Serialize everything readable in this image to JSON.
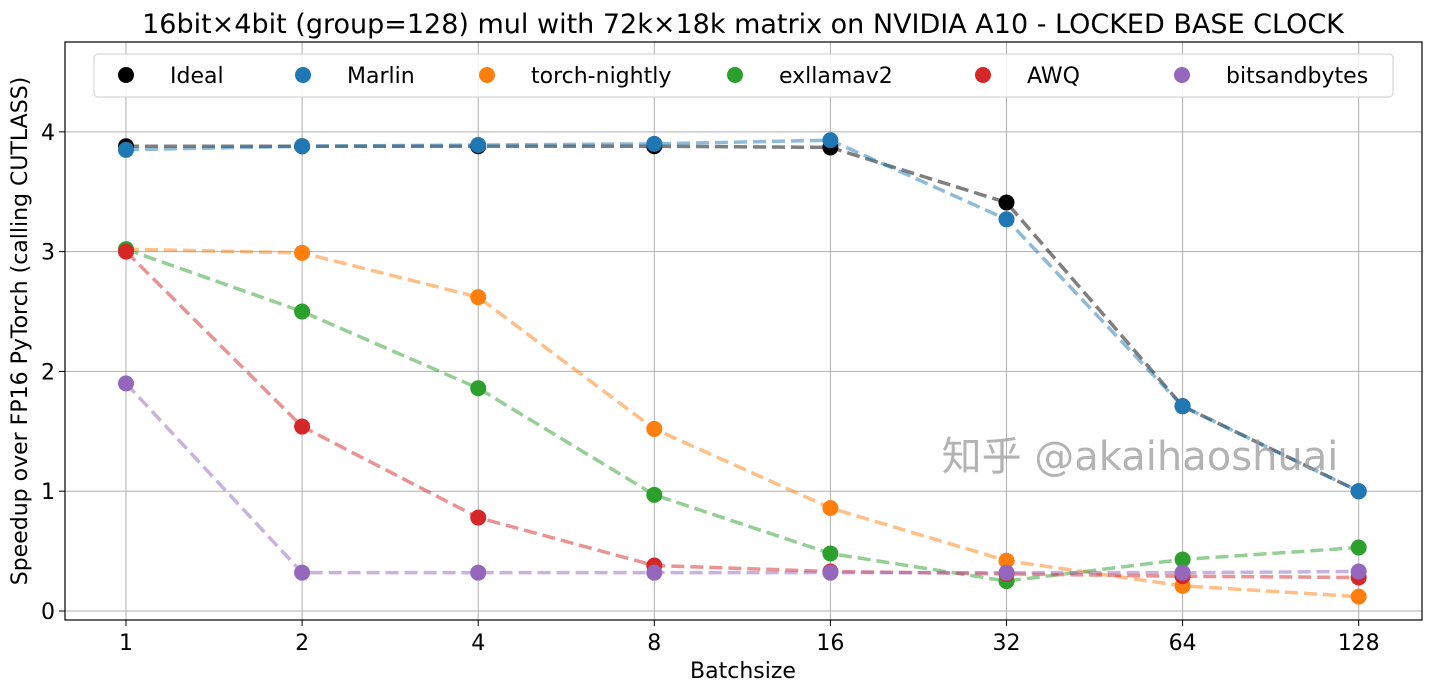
{
  "chart_data": {
    "type": "line",
    "title": "16bit×4bit (group=128) mul with 72k×18k matrix on NVIDIA A10 - LOCKED BASE CLOCK",
    "xlabel": "Batchsize",
    "ylabel": "Speedup over FP16 PyTorch (calling CUTLASS)",
    "categories": [
      "1",
      "2",
      "4",
      "8",
      "16",
      "32",
      "64",
      "128"
    ],
    "ylim": [
      -0.075,
      4.75
    ],
    "yticks": [
      0,
      1,
      2,
      3,
      4
    ],
    "grid": true,
    "legend_placement": "top",
    "line_style": "dashed",
    "series": [
      {
        "name": "Ideal",
        "color": "#000000",
        "values": [
          3.88,
          3.88,
          3.88,
          3.88,
          3.87,
          3.41,
          1.71,
          1.0
        ]
      },
      {
        "name": "Marlin",
        "color": "#1f77b4",
        "values": [
          3.85,
          3.88,
          3.89,
          3.9,
          3.93,
          3.27,
          1.71,
          1.0
        ]
      },
      {
        "name": "torch-nightly",
        "color": "#ff7f0e",
        "values": [
          3.02,
          2.99,
          2.62,
          1.52,
          0.86,
          0.42,
          0.21,
          0.12
        ]
      },
      {
        "name": "exllamav2",
        "color": "#2ca02c",
        "values": [
          3.02,
          2.5,
          1.86,
          0.97,
          0.48,
          0.25,
          0.43,
          0.53
        ]
      },
      {
        "name": "AWQ",
        "color": "#d62728",
        "values": [
          3.0,
          1.54,
          0.78,
          0.38,
          0.33,
          0.31,
          0.29,
          0.28
        ]
      },
      {
        "name": "bitsandbytes",
        "color": "#9467bd",
        "values": [
          1.9,
          0.32,
          0.32,
          0.32,
          0.32,
          0.32,
          0.32,
          0.33
        ]
      }
    ]
  },
  "watermark": "知乎 @akaihaoshuai"
}
